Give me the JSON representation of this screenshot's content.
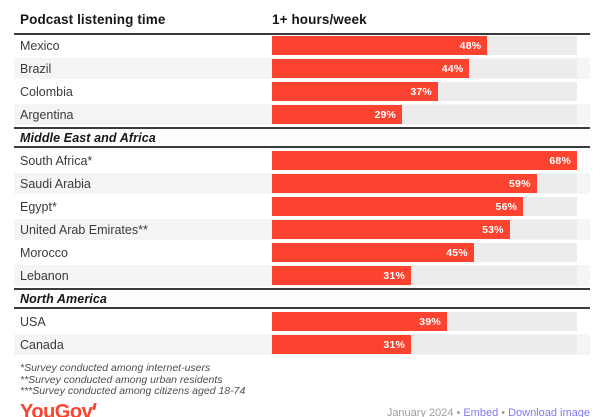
{
  "header": {
    "title": "Podcast listening time",
    "value_column": "1+ hours/week"
  },
  "chart_data": {
    "type": "bar",
    "title": "Podcast listening time",
    "value_header": "1+ hours/week",
    "unit": "%",
    "orientation": "horizontal",
    "xlim": [
      0,
      68
    ],
    "grid": false,
    "legend": false,
    "groups": [
      {
        "label": "",
        "rows": [
          {
            "country": "Mexico",
            "value": 48
          },
          {
            "country": "Brazil",
            "value": 44
          },
          {
            "country": "Colombia",
            "value": 37
          },
          {
            "country": "Argentina",
            "value": 29
          }
        ]
      },
      {
        "label": "Middle East and Africa",
        "rows": [
          {
            "country": "South Africa*",
            "value": 68
          },
          {
            "country": "Saudi Arabia",
            "value": 59
          },
          {
            "country": "Egypt*",
            "value": 56
          },
          {
            "country": "United Arab Emirates**",
            "value": 53
          },
          {
            "country": "Morocco",
            "value": 45
          },
          {
            "country": "Lebanon",
            "value": 31
          }
        ]
      },
      {
        "label": "North America",
        "rows": [
          {
            "country": "USA",
            "value": 39
          },
          {
            "country": "Canada",
            "value": 31
          }
        ]
      }
    ]
  },
  "footnotes": [
    "*Survey conducted among internet-users",
    "**Survey conducted among urban residents",
    "***Survey conducted among citizens aged 18-74"
  ],
  "footer": {
    "logo_text": "YouGov",
    "date": "January 2024",
    "separator": "•",
    "links": [
      "Embed",
      "Download image"
    ]
  },
  "colors": {
    "bar": "#fb4330",
    "track": "#ececec",
    "stripe": "#f5f5f5",
    "rule": "#3b3b3b",
    "link": "#7d7bf1",
    "logo": "#fb4330",
    "date_text": "#9e9e9e"
  }
}
